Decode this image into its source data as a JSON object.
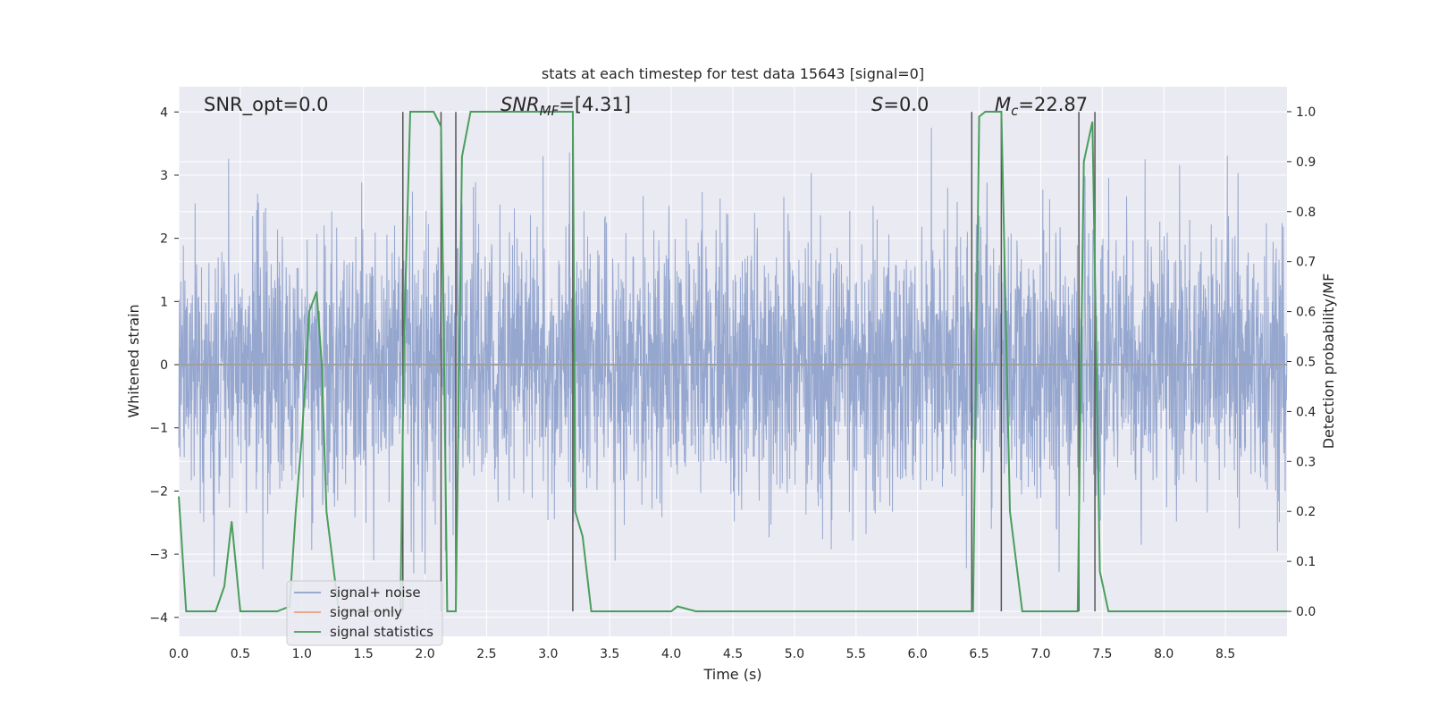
{
  "chart_data": {
    "type": "line",
    "title": "stats at each timestep for test data 15643 [signal=0]",
    "xlabel": "Time (s)",
    "ylabel_left": "Whitened strain",
    "ylabel_right": "Detection probability/MF",
    "xlim": [
      0,
      9.0
    ],
    "ylim_left": [
      -4.3,
      4.4
    ],
    "ylim_right": [
      -0.05,
      1.05
    ],
    "grid": true,
    "x_ticks": [
      0.0,
      0.5,
      1.0,
      1.5,
      2.0,
      2.5,
      3.0,
      3.5,
      4.0,
      4.5,
      5.0,
      5.5,
      6.0,
      6.5,
      7.0,
      7.5,
      8.0,
      8.5
    ],
    "x_tick_labels": [
      "0.0",
      "0.5",
      "1.0",
      "1.5",
      "2.0",
      "2.5",
      "3.0",
      "3.5",
      "4.0",
      "4.5",
      "5.0",
      "5.5",
      "6.0",
      "6.5",
      "7.0",
      "7.5",
      "8.0",
      "8.5"
    ],
    "y_ticks_left": [
      4,
      3,
      2,
      1,
      0,
      -1,
      -2,
      -3,
      -4
    ],
    "y_tick_labels_left": [
      "4",
      "3",
      "2",
      "1",
      "0",
      "−1",
      "−2",
      "−3",
      "−4"
    ],
    "y_ticks_right": [
      1.0,
      0.9,
      0.8,
      0.7,
      0.6,
      0.5,
      0.4,
      0.3,
      0.2,
      0.1,
      0.0
    ],
    "y_tick_labels_right": [
      "1.0",
      "0.9",
      "0.8",
      "0.7",
      "0.6",
      "0.5",
      "0.4",
      "0.3",
      "0.2",
      "0.1",
      "0.0"
    ],
    "annotations": {
      "snr_opt": "SNR_opt=0.0",
      "snr_mf_main": "SNR",
      "snr_mf_sub": "MF",
      "snr_mf_value": "=[4.31]",
      "s_sym": "S",
      "s_value": "=0.0",
      "mc_main": "M",
      "mc_sub": "c",
      "mc_value": "=22.87"
    },
    "legend": {
      "position": "lower-left",
      "entries": [
        "signal+ noise",
        "signal only",
        "signal statistics"
      ]
    },
    "colors": {
      "signal_noise": "#8da0cb",
      "signal_only": "#e8a07c",
      "signal_statistics": "#4a9e5c",
      "vlines": "#555555",
      "background": "#eaeaf2",
      "grid": "#ffffff"
    },
    "series": [
      {
        "name": "signal+ noise",
        "axis": "left",
        "description_values": {
          "approx_range": [
            -3.9,
            3.75
          ],
          "dense_band": [
            -1.5,
            1.6
          ]
        }
      },
      {
        "name": "signal only",
        "axis": "left",
        "values_constant": 0.0
      },
      {
        "name": "signal statistics",
        "axis": "right",
        "x": [
          0.0,
          0.06,
          0.1,
          0.2,
          0.3,
          0.37,
          0.43,
          0.5,
          0.6,
          0.8,
          0.9,
          0.95,
          1.0,
          1.06,
          1.12,
          1.16,
          1.2,
          1.3,
          1.4,
          1.6,
          1.8,
          1.83,
          1.88,
          2.07,
          2.13,
          2.18,
          2.25,
          2.3,
          2.37,
          2.45,
          2.6,
          2.8,
          3.05,
          3.2,
          3.22,
          3.28,
          3.35,
          3.5,
          4.0,
          4.05,
          4.2,
          5.0,
          6.0,
          6.45,
          6.5,
          6.55,
          6.68,
          6.75,
          6.85,
          7.0,
          7.3,
          7.35,
          7.42,
          7.48,
          7.55,
          7.7,
          8.0,
          8.5,
          9.0
        ],
        "y": [
          0.23,
          0.0,
          0.0,
          0.0,
          0.0,
          0.05,
          0.18,
          0.0,
          0.0,
          0.0,
          0.01,
          0.2,
          0.35,
          0.6,
          0.64,
          0.5,
          0.2,
          0.0,
          0.0,
          0.0,
          0.0,
          0.55,
          1.0,
          1.0,
          0.97,
          0.0,
          0.0,
          0.91,
          1.0,
          1.0,
          1.0,
          1.0,
          1.0,
          1.0,
          0.2,
          0.15,
          0.0,
          0.0,
          0.0,
          0.01,
          0.0,
          0.0,
          0.0,
          0.0,
          0.99,
          1.0,
          1.0,
          0.2,
          0.0,
          0.0,
          0.0,
          0.9,
          0.98,
          0.08,
          0.0,
          0.0,
          0.0,
          0.0,
          0.0
        ]
      }
    ],
    "vertical_lines_x": [
      1.82,
      2.13,
      2.25,
      3.2,
      6.44,
      6.68,
      7.31,
      7.44
    ]
  }
}
